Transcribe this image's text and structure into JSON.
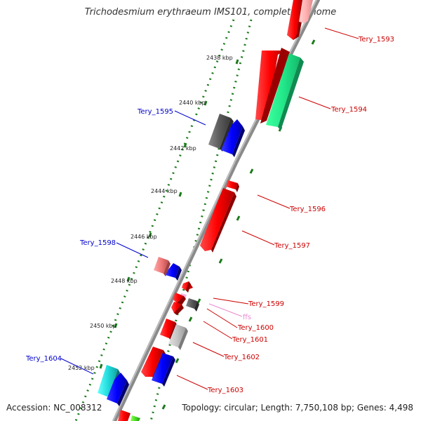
{
  "title": "Trichodesmium erythraeum IMS101, complete genome",
  "accession": "Accession: NC_008312",
  "summary": "Topology: circular; Length: 7,750,108 bp; Genes: 4,498",
  "colors": {
    "backbone": "#8a8a8a",
    "tick": "#1a7a1a",
    "forward_label": "#cc0000",
    "reverse_label": "#0000cc",
    "rna_label": "#e88ad0"
  },
  "kbp_labels": [
    "2438 kbp",
    "2440 kbp",
    "2442 kbp",
    "2444 kbp",
    "2446 kbp",
    "2448 kbp",
    "2450 kbp",
    "2452 kbp"
  ],
  "genes": [
    {
      "id": "Tery_1593",
      "label": "Tery_1593",
      "strand": "forward"
    },
    {
      "id": "Tery_1594",
      "label": "Tery_1594",
      "strand": "forward"
    },
    {
      "id": "Tery_1595",
      "label": "Tery_1595",
      "strand": "reverse"
    },
    {
      "id": "Tery_1596",
      "label": "Tery_1596",
      "strand": "forward"
    },
    {
      "id": "Tery_1597",
      "label": "Tery_1597",
      "strand": "forward"
    },
    {
      "id": "Tery_1598",
      "label": "Tery_1598",
      "strand": "reverse"
    },
    {
      "id": "Tery_1599",
      "label": "Tery_1599",
      "strand": "forward"
    },
    {
      "id": "ffs",
      "label": "ffs",
      "strand": "forward"
    },
    {
      "id": "Tery_1600",
      "label": "Tery_1600",
      "strand": "forward"
    },
    {
      "id": "Tery_1601",
      "label": "Tery_1601",
      "strand": "forward"
    },
    {
      "id": "Tery_1602",
      "label": "Tery_1602",
      "strand": "forward"
    },
    {
      "id": "Tery_1603",
      "label": "Tery_1603",
      "strand": "forward"
    },
    {
      "id": "Tery_1604",
      "label": "Tery_1604",
      "strand": "reverse"
    }
  ]
}
